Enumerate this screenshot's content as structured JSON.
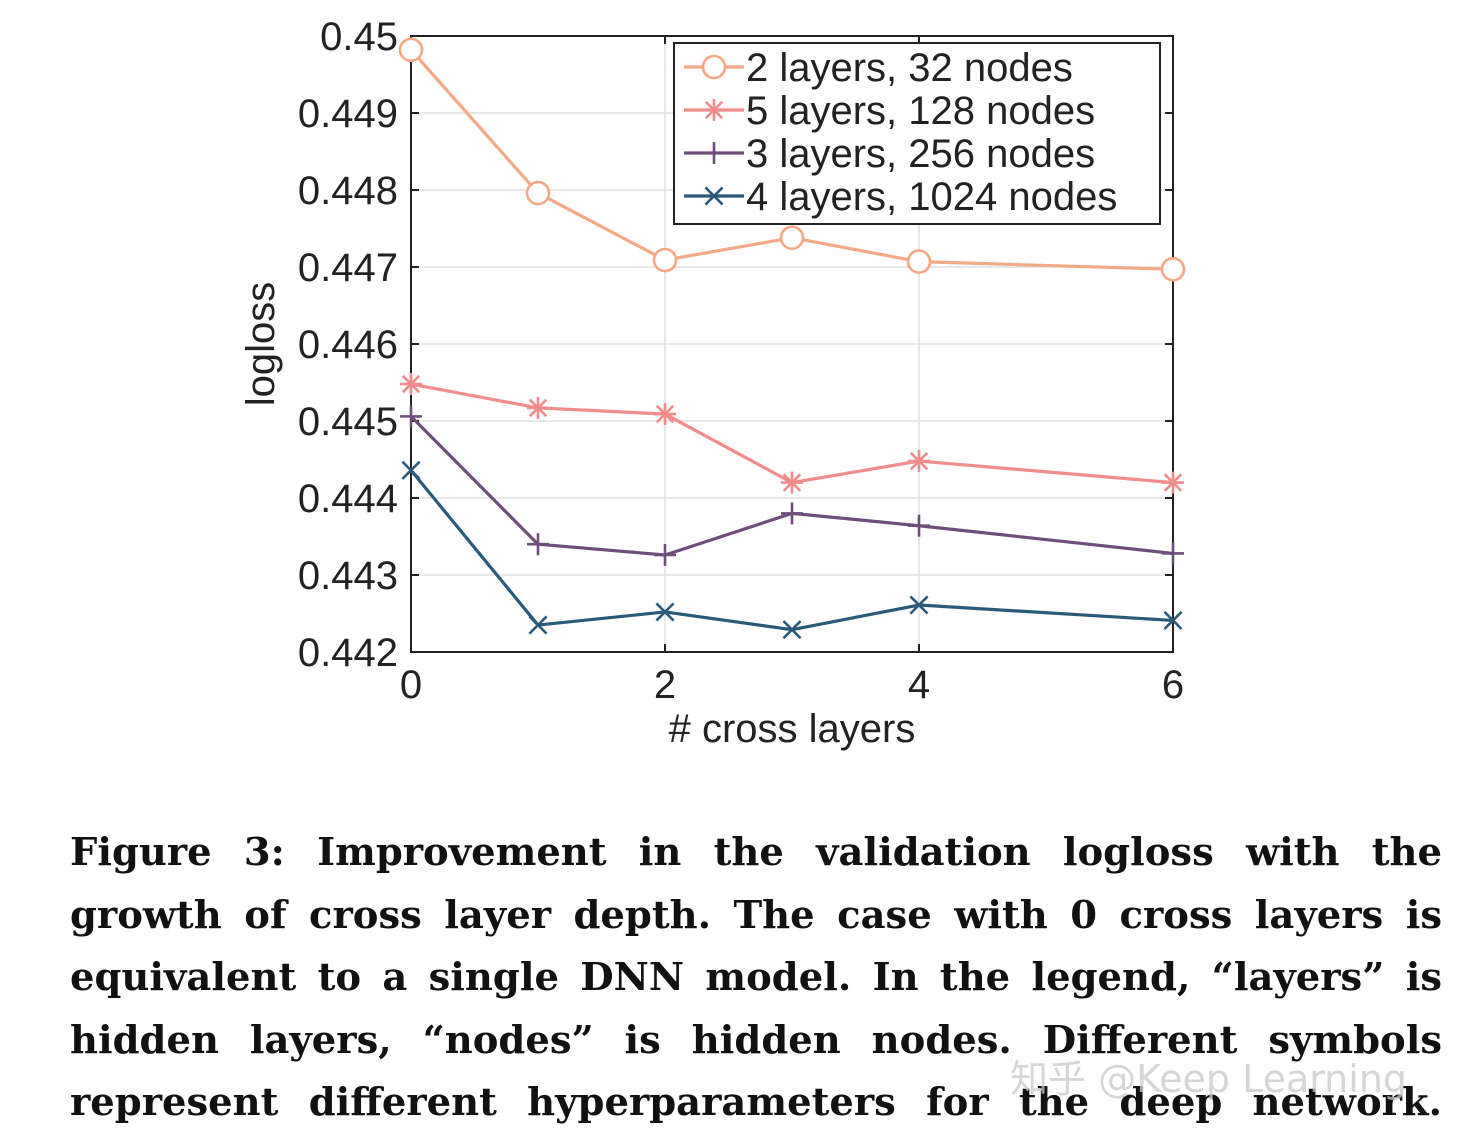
{
  "chart_data": {
    "type": "line",
    "title": "",
    "xlabel": "# cross layers",
    "ylabel": "logloss",
    "xlim": [
      0,
      6
    ],
    "ylim": [
      0.442,
      0.45
    ],
    "x": [
      0,
      1,
      2,
      3,
      4,
      6
    ],
    "x_ticks": [
      "0",
      "2",
      "4",
      "6"
    ],
    "x_tick_values": [
      0,
      2,
      4,
      6
    ],
    "y_ticks": [
      "0.442",
      "0.443",
      "0.444",
      "0.445",
      "0.446",
      "0.447",
      "0.448",
      "0.449",
      "0.45"
    ],
    "y_tick_values": [
      0.442,
      0.443,
      0.444,
      0.445,
      0.446,
      0.447,
      0.448,
      0.449,
      0.45
    ],
    "grid": true,
    "legend_position": "top-right",
    "series": [
      {
        "name": "2 layers, 32 nodes",
        "marker": "circle",
        "color": "#F3A985",
        "values": [
          0.44982,
          0.44796,
          0.44709,
          0.44738,
          0.44707,
          0.44697
        ]
      },
      {
        "name": "5 layers, 128 nodes",
        "marker": "asterisk",
        "color": "#F28B8B",
        "values": [
          0.44548,
          0.44517,
          0.44509,
          0.4442,
          0.44448,
          0.4442
        ]
      },
      {
        "name": "3 layers, 256 nodes",
        "marker": "plus",
        "color": "#6F4E7C",
        "values": [
          0.44506,
          0.4434,
          0.44326,
          0.4438,
          0.44364,
          0.44328
        ]
      },
      {
        "name": "4 layers, 1024 nodes",
        "marker": "x",
        "color": "#2A5A7A",
        "values": [
          0.44436,
          0.44235,
          0.44252,
          0.44229,
          0.44261,
          0.44241
        ]
      }
    ]
  },
  "caption": {
    "lines": [
      "Figure 3: Improvement in the validation logloss with the",
      "growth of cross layer depth. The case with 0 cross layers is",
      "equivalent to a single DNN model. In the legend, “layers” is",
      "hidden layers, “nodes” is hidden nodes. Different symbols",
      "represent different hyperparameters for the deep network."
    ]
  },
  "watermark": "知乎 @Keep Learning"
}
